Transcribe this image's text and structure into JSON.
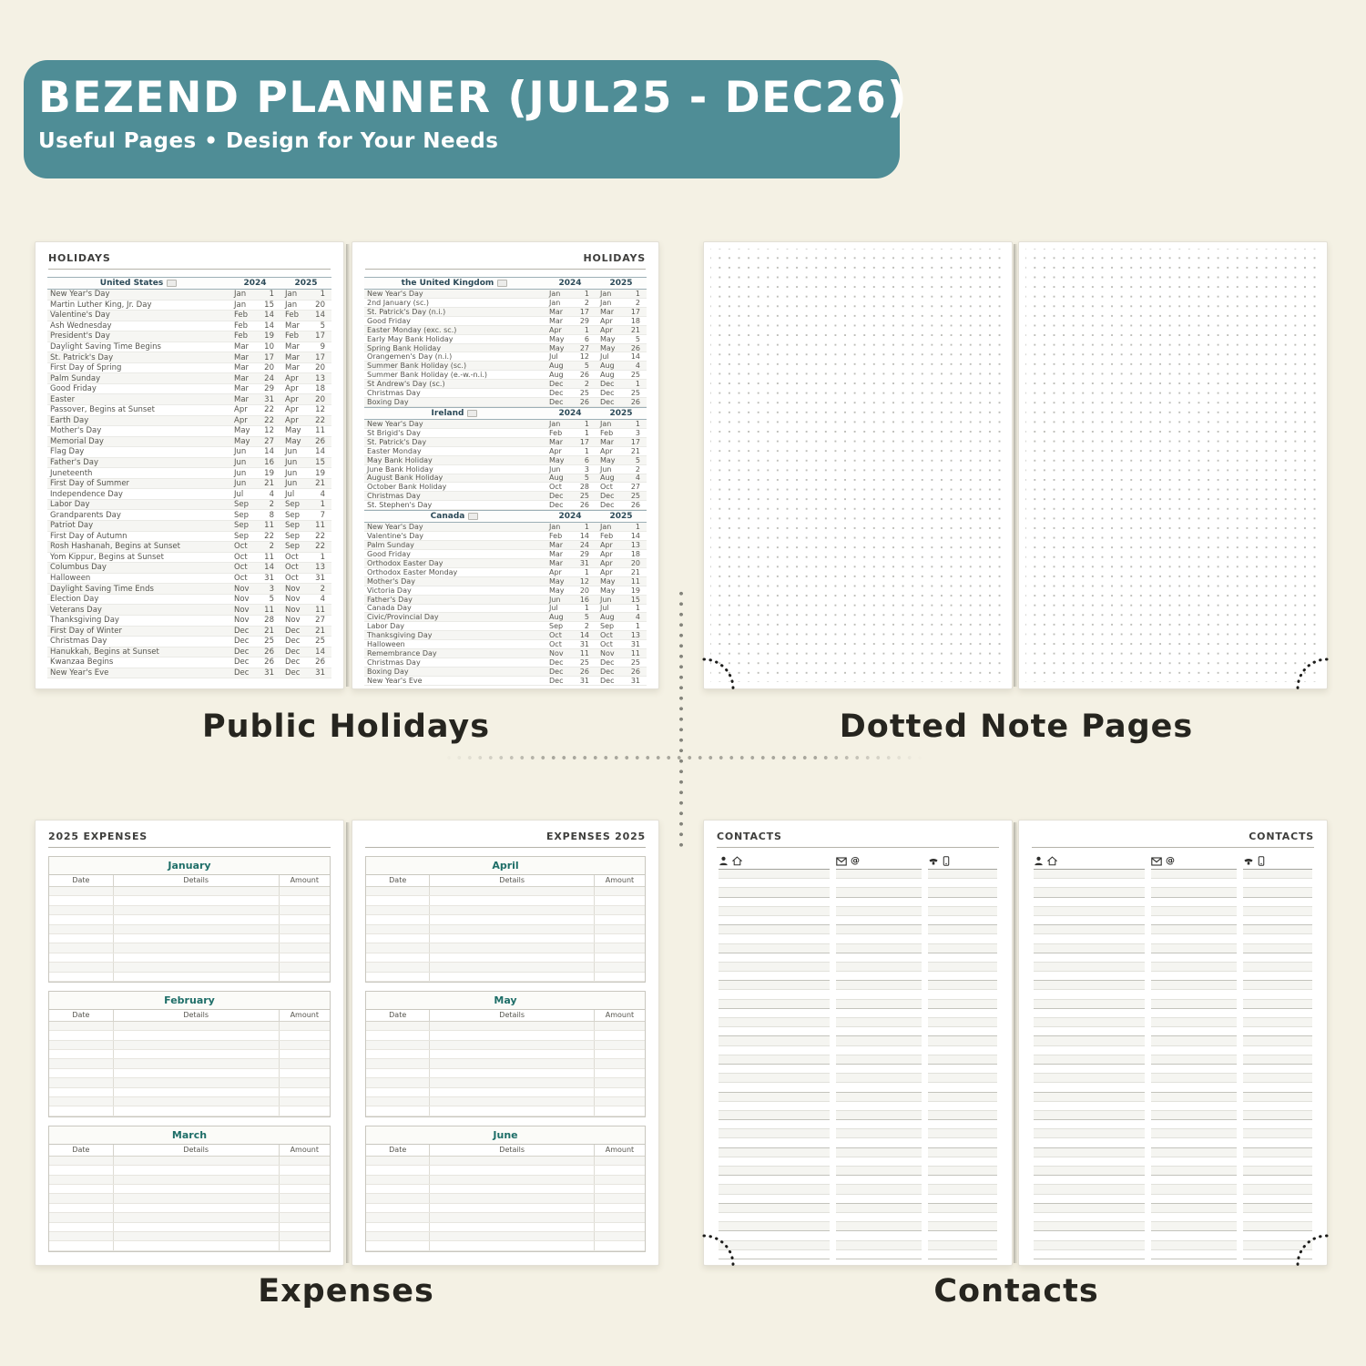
{
  "banner": {
    "title": "BEZEND PLANNER (JUL25 - DEC26)",
    "subtitle": "Useful Pages  •  Design for Your Needs",
    "bg_color": "#4f8d96",
    "text_color": "#ffffff"
  },
  "captions": {
    "top_left": "Public Holidays",
    "top_right": "Dotted Note Pages",
    "bottom_left": "Expenses",
    "bottom_right": "Contacts"
  },
  "holidays": {
    "page_header": "HOLIDAYS",
    "year1": "2024",
    "year2": "2025",
    "united_states": {
      "name": "United States",
      "rows": [
        [
          "New Year's Day",
          "Jan",
          "1",
          "Jan",
          "1"
        ],
        [
          "Martin Luther King, Jr. Day",
          "Jan",
          "15",
          "Jan",
          "20"
        ],
        [
          "Valentine's Day",
          "Feb",
          "14",
          "Feb",
          "14"
        ],
        [
          "Ash Wednesday",
          "Feb",
          "14",
          "Mar",
          "5"
        ],
        [
          "President's Day",
          "Feb",
          "19",
          "Feb",
          "17"
        ],
        [
          "Daylight Saving Time Begins",
          "Mar",
          "10",
          "Mar",
          "9"
        ],
        [
          "St. Patrick's Day",
          "Mar",
          "17",
          "Mar",
          "17"
        ],
        [
          "First Day of Spring",
          "Mar",
          "20",
          "Mar",
          "20"
        ],
        [
          "Palm Sunday",
          "Mar",
          "24",
          "Apr",
          "13"
        ],
        [
          "Good Friday",
          "Mar",
          "29",
          "Apr",
          "18"
        ],
        [
          "Easter",
          "Mar",
          "31",
          "Apr",
          "20"
        ],
        [
          "Passover, Begins at Sunset",
          "Apr",
          "22",
          "Apr",
          "12"
        ],
        [
          "Earth Day",
          "Apr",
          "22",
          "Apr",
          "22"
        ],
        [
          "Mother's Day",
          "May",
          "12",
          "May",
          "11"
        ],
        [
          "Memorial Day",
          "May",
          "27",
          "May",
          "26"
        ],
        [
          "Flag Day",
          "Jun",
          "14",
          "Jun",
          "14"
        ],
        [
          "Father's Day",
          "Jun",
          "16",
          "Jun",
          "15"
        ],
        [
          "Juneteenth",
          "Jun",
          "19",
          "Jun",
          "19"
        ],
        [
          "First Day of Summer",
          "Jun",
          "21",
          "Jun",
          "21"
        ],
        [
          "Independence Day",
          "Jul",
          "4",
          "Jul",
          "4"
        ],
        [
          "Labor Day",
          "Sep",
          "2",
          "Sep",
          "1"
        ],
        [
          "Grandparents Day",
          "Sep",
          "8",
          "Sep",
          "7"
        ],
        [
          "Patriot Day",
          "Sep",
          "11",
          "Sep",
          "11"
        ],
        [
          "First Day of Autumn",
          "Sep",
          "22",
          "Sep",
          "22"
        ],
        [
          "Rosh Hashanah, Begins at Sunset",
          "Oct",
          "2",
          "Sep",
          "22"
        ],
        [
          "Yom Kippur, Begins at Sunset",
          "Oct",
          "11",
          "Oct",
          "1"
        ],
        [
          "Columbus Day",
          "Oct",
          "14",
          "Oct",
          "13"
        ],
        [
          "Halloween",
          "Oct",
          "31",
          "Oct",
          "31"
        ],
        [
          "Daylight Saving Time Ends",
          "Nov",
          "3",
          "Nov",
          "2"
        ],
        [
          "Election Day",
          "Nov",
          "5",
          "Nov",
          "4"
        ],
        [
          "Veterans Day",
          "Nov",
          "11",
          "Nov",
          "11"
        ],
        [
          "Thanksgiving Day",
          "Nov",
          "28",
          "Nov",
          "27"
        ],
        [
          "First Day of Winter",
          "Dec",
          "21",
          "Dec",
          "21"
        ],
        [
          "Christmas Day",
          "Dec",
          "25",
          "Dec",
          "25"
        ],
        [
          "Hanukkah, Begins at Sunset",
          "Dec",
          "26",
          "Dec",
          "14"
        ],
        [
          "Kwanzaa Begins",
          "Dec",
          "26",
          "Dec",
          "26"
        ],
        [
          "New Year's Eve",
          "Dec",
          "31",
          "Dec",
          "31"
        ]
      ]
    },
    "united_kingdom": {
      "name": "the United Kingdom",
      "rows": [
        [
          "New Year's Day",
          "Jan",
          "1",
          "Jan",
          "1"
        ],
        [
          "2nd January (sc.)",
          "Jan",
          "2",
          "Jan",
          "2"
        ],
        [
          "St. Patrick's Day (n.i.)",
          "Mar",
          "17",
          "Mar",
          "17"
        ],
        [
          "Good Friday",
          "Mar",
          "29",
          "Apr",
          "18"
        ],
        [
          "Easter Monday (exc. sc.)",
          "Apr",
          "1",
          "Apr",
          "21"
        ],
        [
          "Early May Bank Holiday",
          "May",
          "6",
          "May",
          "5"
        ],
        [
          "Spring Bank Holiday",
          "May",
          "27",
          "May",
          "26"
        ],
        [
          "Orangemen's Day (n.i.)",
          "Jul",
          "12",
          "Jul",
          "14"
        ],
        [
          "Summer Bank Holiday (sc.)",
          "Aug",
          "5",
          "Aug",
          "4"
        ],
        [
          "Summer Bank Holiday (e.-w.-n.i.)",
          "Aug",
          "26",
          "Aug",
          "25"
        ],
        [
          "St Andrew's Day (sc.)",
          "Dec",
          "2",
          "Dec",
          "1"
        ],
        [
          "Christmas Day",
          "Dec",
          "25",
          "Dec",
          "25"
        ],
        [
          "Boxing Day",
          "Dec",
          "26",
          "Dec",
          "26"
        ]
      ]
    },
    "ireland": {
      "name": "Ireland",
      "rows": [
        [
          "New Year's Day",
          "Jan",
          "1",
          "Jan",
          "1"
        ],
        [
          "St Brigid's Day",
          "Feb",
          "1",
          "Feb",
          "3"
        ],
        [
          "St. Patrick's Day",
          "Mar",
          "17",
          "Mar",
          "17"
        ],
        [
          "Easter Monday",
          "Apr",
          "1",
          "Apr",
          "21"
        ],
        [
          "May Bank Holiday",
          "May",
          "6",
          "May",
          "5"
        ],
        [
          "June Bank Holiday",
          "Jun",
          "3",
          "Jun",
          "2"
        ],
        [
          "August Bank Holiday",
          "Aug",
          "5",
          "Aug",
          "4"
        ],
        [
          "October Bank Holiday",
          "Oct",
          "28",
          "Oct",
          "27"
        ],
        [
          "Christmas Day",
          "Dec",
          "25",
          "Dec",
          "25"
        ],
        [
          "St. Stephen's Day",
          "Dec",
          "26",
          "Dec",
          "26"
        ]
      ]
    },
    "canada": {
      "name": "Canada",
      "rows": [
        [
          "New Year's Day",
          "Jan",
          "1",
          "Jan",
          "1"
        ],
        [
          "Valentine's Day",
          "Feb",
          "14",
          "Feb",
          "14"
        ],
        [
          "Palm Sunday",
          "Mar",
          "24",
          "Apr",
          "13"
        ],
        [
          "Good Friday",
          "Mar",
          "29",
          "Apr",
          "18"
        ],
        [
          "Orthodox Easter Day",
          "Mar",
          "31",
          "Apr",
          "20"
        ],
        [
          "Orthodox Easter Monday",
          "Apr",
          "1",
          "Apr",
          "21"
        ],
        [
          "Mother's Day",
          "May",
          "12",
          "May",
          "11"
        ],
        [
          "Victoria Day",
          "May",
          "20",
          "May",
          "19"
        ],
        [
          "Father's Day",
          "Jun",
          "16",
          "Jun",
          "15"
        ],
        [
          "Canada Day",
          "Jul",
          "1",
          "Jul",
          "1"
        ],
        [
          "Civic/Provincial Day",
          "Aug",
          "5",
          "Aug",
          "4"
        ],
        [
          "Labor Day",
          "Sep",
          "2",
          "Sep",
          "1"
        ],
        [
          "Thanksgiving Day",
          "Oct",
          "14",
          "Oct",
          "13"
        ],
        [
          "Halloween",
          "Oct",
          "31",
          "Oct",
          "31"
        ],
        [
          "Remembrance Day",
          "Nov",
          "11",
          "Nov",
          "11"
        ],
        [
          "Christmas Day",
          "Dec",
          "25",
          "Dec",
          "25"
        ],
        [
          "Boxing Day",
          "Dec",
          "26",
          "Dec",
          "26"
        ],
        [
          "New Year's Eve",
          "Dec",
          "31",
          "Dec",
          "31"
        ]
      ]
    }
  },
  "expenses": {
    "left_page_header": "2025 EXPENSES",
    "right_page_header": "EXPENSES 2025",
    "columns": [
      "Date",
      "Details",
      "Amount"
    ],
    "months": [
      "January",
      "February",
      "March",
      "April",
      "May",
      "June"
    ]
  },
  "contacts": {
    "page_header": "CONTACTS",
    "icons": [
      "person-icon",
      "home-icon",
      "mail-icon",
      "at-icon",
      "phone-icon",
      "mobile-icon"
    ]
  }
}
